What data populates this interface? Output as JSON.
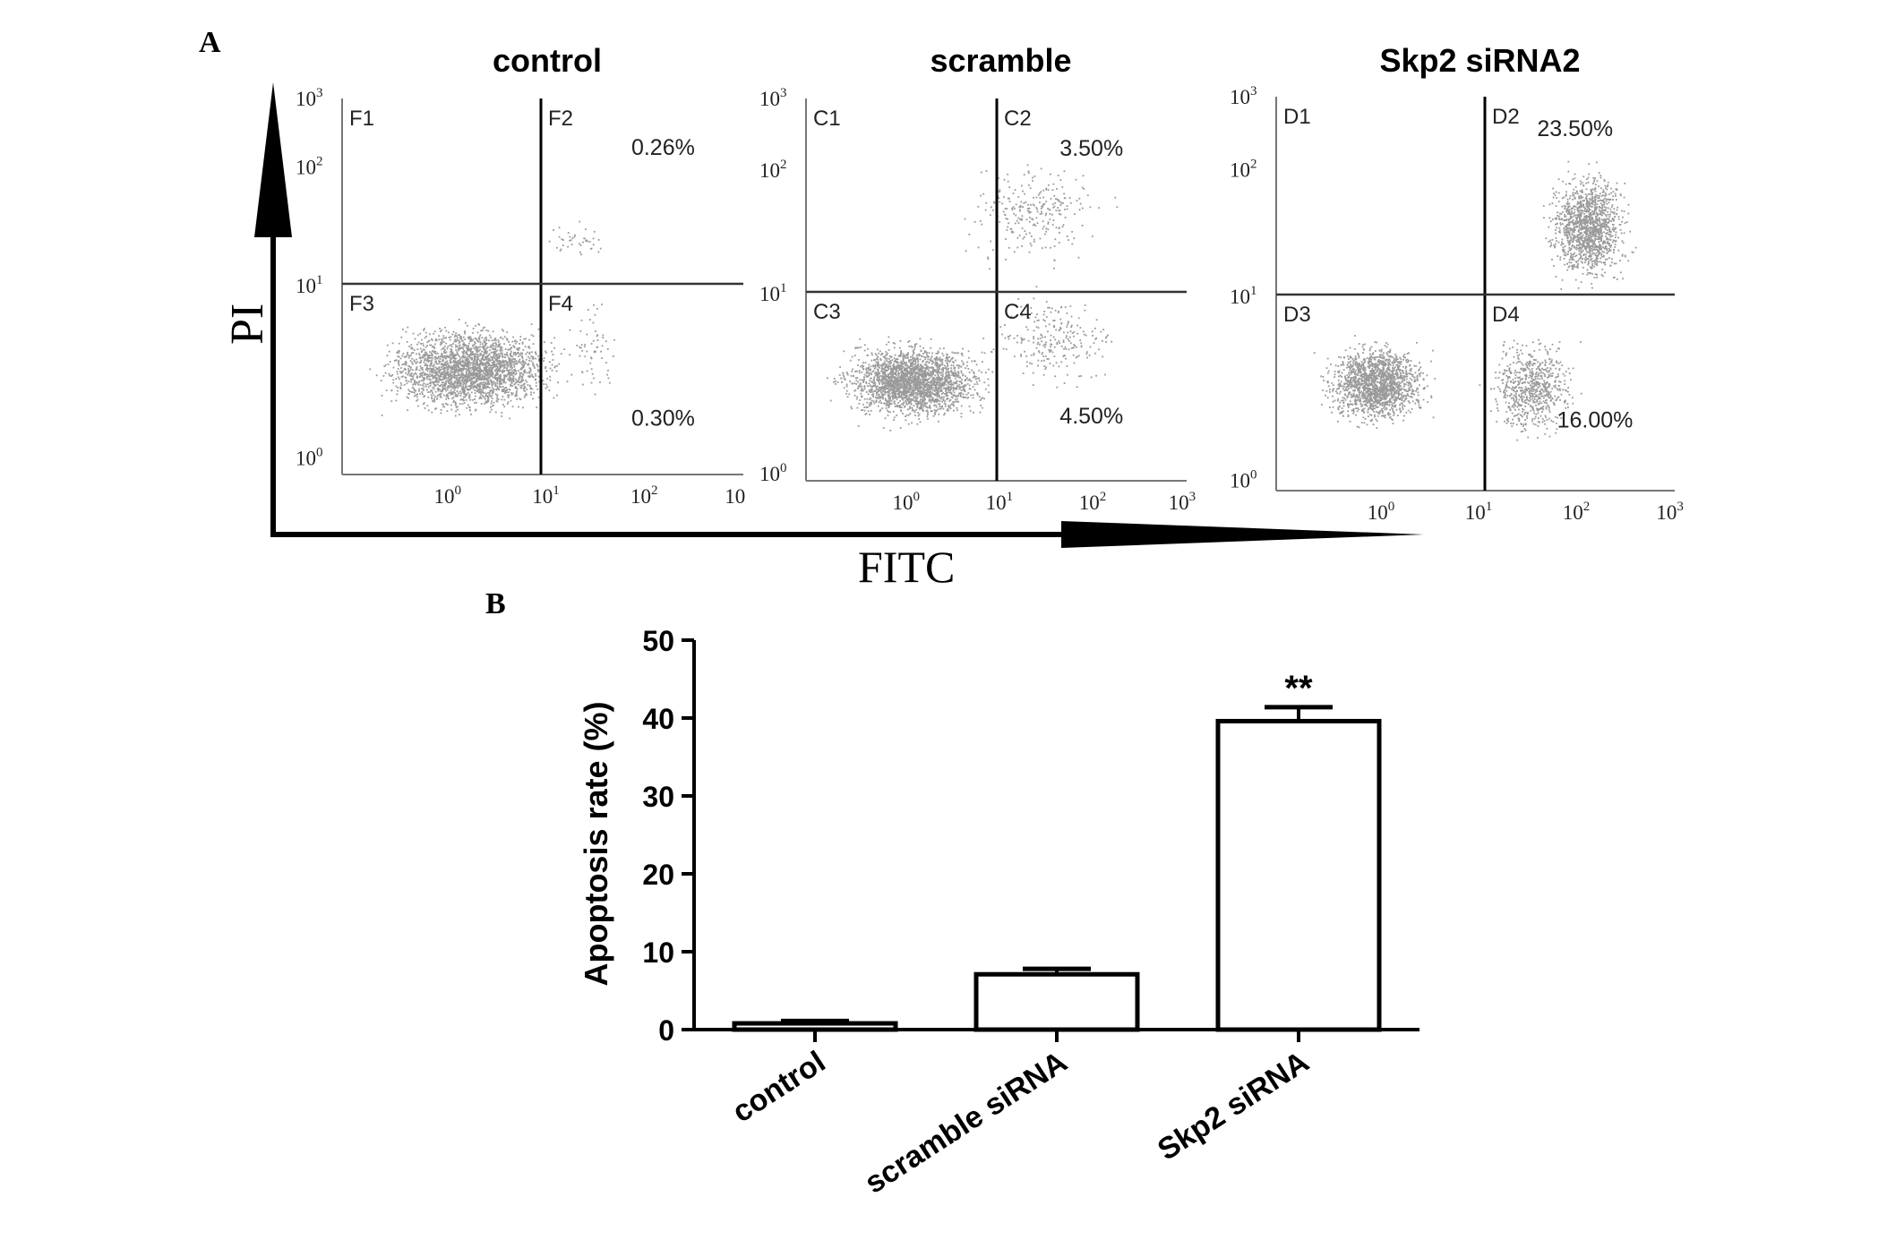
{
  "panel_a": {
    "label": "A",
    "x_axis_title": "FITC",
    "y_axis_title": "PI",
    "plots": [
      {
        "title": "control",
        "quadrants": [
          "F1",
          "F2",
          "F3",
          "F4"
        ],
        "upper_right_percent": "0.26%",
        "lower_right_percent": "0.30%",
        "y_ticks": [
          "10",
          "10",
          "10",
          "10"
        ],
        "y_exponents": [
          "3",
          "2",
          "1",
          "0"
        ],
        "x_ticks": [
          "10",
          "10",
          "10",
          "10"
        ],
        "x_exponents": [
          "0",
          "1",
          "2",
          ""
        ]
      },
      {
        "title": "scramble",
        "quadrants": [
          "C1",
          "C2",
          "C3",
          "C4"
        ],
        "upper_right_percent": "3.50%",
        "lower_right_percent": "4.50%",
        "y_ticks": [
          "10",
          "10",
          "10",
          "10"
        ],
        "y_exponents": [
          "3",
          "2",
          "1",
          "0"
        ],
        "x_ticks": [
          "10",
          "10",
          "10",
          "10"
        ],
        "x_exponents": [
          "0",
          "1",
          "2",
          "3"
        ]
      },
      {
        "title": "Skp2 siRNA2",
        "quadrants": [
          "D1",
          "D2",
          "D3",
          "D4"
        ],
        "upper_right_percent": "23.50%",
        "lower_right_percent": "16.00%",
        "y_ticks": [
          "10",
          "10",
          "10",
          "10"
        ],
        "y_exponents": [
          "3",
          "2",
          "1",
          "0"
        ],
        "x_ticks": [
          "10",
          "10",
          "10",
          "10"
        ],
        "x_exponents": [
          "0",
          "1",
          "2",
          "3"
        ]
      }
    ]
  },
  "panel_b": {
    "label": "B"
  },
  "colors": {
    "ink": "#000000",
    "dots": "#9a9a9a",
    "bar_fill": "#ffffff"
  },
  "chart_data": {
    "type": "bar",
    "categories": [
      "control",
      "scramble siRNA",
      "Skp2 siRNA"
    ],
    "values": [
      0.8,
      7.1,
      39.6
    ],
    "errors": [
      0.3,
      0.7,
      1.8
    ],
    "annotations": [
      "",
      "",
      "**"
    ],
    "ylabel": "Apoptosis rate (%)",
    "xlabel": "",
    "ylim": [
      0,
      50
    ],
    "yticks": [
      0,
      10,
      20,
      30,
      40,
      50
    ],
    "grid": false
  }
}
